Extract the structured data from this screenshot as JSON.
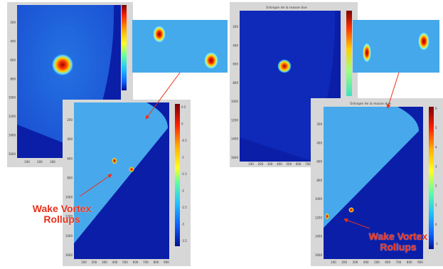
{
  "figures": {
    "top_right_main_title": "Entropie de la masse due",
    "bottom_right_title": "Entropie de la masse due"
  },
  "labels": {
    "left_line1": "Wake Vortex",
    "left_line2": "Rollups",
    "right_line1": "Wake Vortex",
    "right_line2": "Rollups"
  },
  "axes": {
    "fig1_y_ticks": [
      "200",
      "400",
      "600",
      "800",
      "1000",
      "1200",
      "1400",
      "1600"
    ],
    "fig1_x_ticks": [
      "100",
      "200",
      "300",
      "400"
    ],
    "fig2_y_ticks": [
      "200",
      "400",
      "600",
      "800",
      "1000",
      "1200",
      "1400",
      "1600"
    ],
    "fig2_x_ticks": [
      "100",
      "200",
      "300",
      "400",
      "500",
      "600",
      "700",
      "800",
      "900"
    ],
    "fig2_cb_ticks": [
      "0.5",
      "0",
      "-0.5",
      "-1",
      "-1.5",
      "-2",
      "-2.5",
      "-3",
      "-3.5"
    ],
    "fig3_y_ticks": [
      "200",
      "400",
      "600",
      "800",
      "1000",
      "1200",
      "1400",
      "1600"
    ],
    "fig3_x_ticks": [
      "100",
      "200",
      "300",
      "400",
      "500",
      "600",
      "700"
    ],
    "fig4_y_ticks": [
      "200",
      "400",
      "600",
      "800",
      "1000",
      "1200",
      "1400",
      "1600"
    ],
    "fig4_x_ticks": [
      "100",
      "200",
      "300",
      "400",
      "500",
      "600",
      "700",
      "800",
      "900"
    ],
    "fig4_cb_ticks": [
      "6",
      "5",
      "4",
      "3",
      "2",
      "1",
      "0",
      "-1"
    ]
  },
  "colors": {
    "background_dark": "#0a1ea8",
    "field_light": "#3aa0e8",
    "arrow": "#e8321c",
    "label": "#e8321c"
  }
}
